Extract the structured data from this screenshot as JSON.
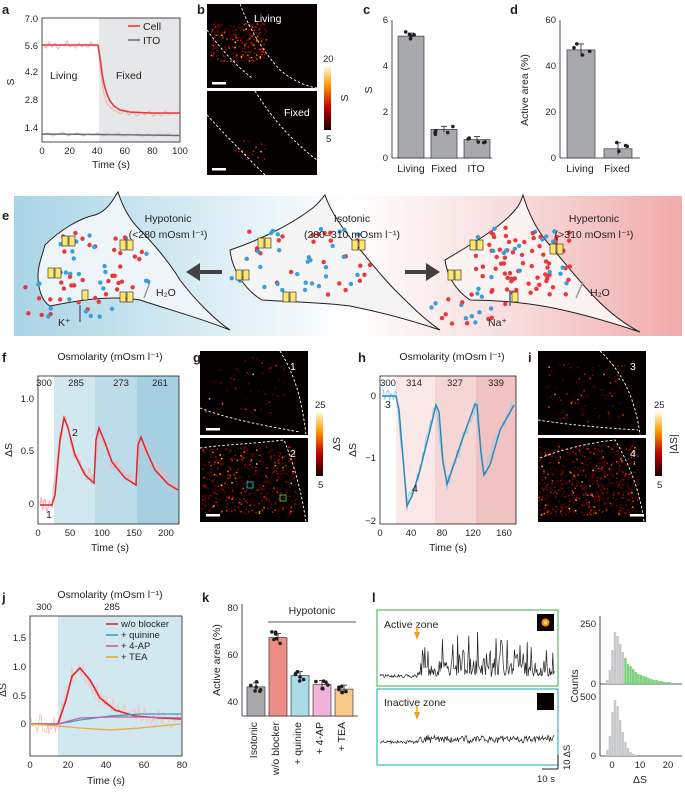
{
  "panel_labels": {
    "a": "a",
    "b": "b",
    "c": "c",
    "d": "d",
    "e": "e",
    "f": "f",
    "g": "g",
    "h": "h",
    "i": "i",
    "j": "j",
    "k": "k",
    "l": "l"
  },
  "colors": {
    "cell_red": "#e8383d",
    "ito_grey": "#6d6e71",
    "bar_grey": "#a7a9ac",
    "salmon": "#ee8c86",
    "light_blue": "#a9dbe9",
    "pink": "#f2b3da",
    "orange": "#f9c987",
    "hypo_blue": "#b9dcea",
    "hyper_pink": "#f2b5b5",
    "trace_blue": "#2a8ab8"
  },
  "panel_a": {
    "ylabel": "S",
    "xlabel": "Time (s)",
    "yticks": [
      "1.4",
      "2.8",
      "4.2",
      "5.6",
      "7.0"
    ],
    "xticks": [
      "0",
      "20",
      "40",
      "60",
      "80",
      "100"
    ],
    "legend": [
      "Cell",
      "ITO"
    ],
    "region_left": "Living",
    "region_right": "Fixed"
  },
  "panel_b": {
    "top_label": "Living",
    "bottom_label": "Fixed",
    "colorbar_max": "20",
    "colorbar_min": "5",
    "colorbar_label": "S"
  },
  "panel_c": {
    "ylabel": "S",
    "yticks": [
      "0",
      "2",
      "4",
      "6"
    ],
    "categories": [
      "Living",
      "Fixed",
      "ITO"
    ]
  },
  "panel_d": {
    "ylabel": "Active area (%)",
    "yticks": [
      "0",
      "20",
      "40",
      "60"
    ],
    "categories": [
      "Living",
      "Fixed"
    ]
  },
  "panel_e": {
    "hypo_title": "Hypotonic",
    "hypo_range": "(<280 mOsm l⁻¹)",
    "iso_title": "Isotonic",
    "iso_range": "(280–310 mOsm l⁻¹)",
    "hyper_title": "Hypertonic",
    "hyper_range": "(>310 mOsm l⁻¹)",
    "water": "H₂O",
    "k_ion": "K⁺",
    "na_ion": "Na⁺"
  },
  "panel_f": {
    "title": "Osmolarity (mOsm l⁻¹)",
    "osm_ticks": [
      "300",
      "285",
      "273",
      "261"
    ],
    "ylabel": "ΔS",
    "xlabel": "Time (s)",
    "yticks": [
      "0",
      "0.5",
      "1.0"
    ],
    "xticks": [
      "0",
      "50",
      "100",
      "150",
      "200"
    ],
    "marker1": "1",
    "marker2": "2"
  },
  "panel_g": {
    "top_label": "1",
    "bottom_label": "2",
    "colorbar_max": "25",
    "colorbar_min": "5",
    "colorbar_label": "ΔS"
  },
  "panel_h": {
    "title": "Osmolarity (mOsm l⁻¹)",
    "osm_ticks": [
      "300",
      "314",
      "327",
      "339"
    ],
    "ylabel": "ΔS",
    "xlabel": "Time (s)",
    "yticks": [
      "0",
      "−1",
      "−2"
    ],
    "xticks": [
      "0",
      "40",
      "80",
      "120",
      "160"
    ],
    "marker3": "3",
    "marker4": "4"
  },
  "panel_i": {
    "top_label": "3",
    "bottom_label": "4",
    "colorbar_max": "25",
    "colorbar_min": "5",
    "colorbar_label": "|ΔS|"
  },
  "panel_j": {
    "title": "Osmolarity (mOsm l⁻¹)",
    "osm_ticks": [
      "300",
      "285"
    ],
    "ylabel": "ΔS",
    "xlabel": "Time (s)",
    "yticks": [
      "0",
      "0.5",
      "1.0",
      "1.5"
    ],
    "xticks": [
      "0",
      "20",
      "40",
      "60",
      "80"
    ],
    "legend": [
      "w/o blocker",
      "+ quinine",
      "+ 4-AP",
      "+ TEA"
    ]
  },
  "panel_k": {
    "ylabel": "Active area (%)",
    "yticks": [
      "40",
      "60",
      "80"
    ],
    "group_label": "Hypotonic",
    "categories": [
      "Isotonic",
      "w/o blocker",
      "+ quinine",
      "+ 4-AP",
      "+ TEA"
    ]
  },
  "panel_l": {
    "active_label": "Active zone",
    "inactive_label": "Inactive zone",
    "scale_x": "10 s",
    "scale_y": "10 ΔS",
    "counts_label": "Counts",
    "hist_xlabel": "ΔS",
    "hist_top_yticks": [
      "0",
      "250"
    ],
    "hist_bottom_yticks": [
      "0",
      "500"
    ],
    "hist_xticks": [
      "0",
      "10",
      "20"
    ]
  },
  "chart_data": [
    {
      "panel": "a",
      "type": "line",
      "title": "",
      "xlabel": "Time (s)",
      "ylabel": "S",
      "xlim": [
        0,
        100
      ],
      "ylim": [
        0.7,
        7.0
      ],
      "series": [
        {
          "name": "Cell",
          "values_description": "plateau 5.6 then exponential decay",
          "x": [
            0,
            10,
            20,
            30,
            38,
            40,
            42,
            45,
            50,
            55,
            60,
            70,
            80,
            90,
            100
          ],
          "values": [
            5.6,
            5.6,
            5.6,
            5.6,
            5.6,
            5.3,
            4.4,
            3.4,
            2.6,
            2.3,
            2.15,
            2.1,
            2.1,
            2.1,
            2.1
          ]
        },
        {
          "name": "ITO",
          "x": [
            0,
            20,
            40,
            60,
            80,
            100
          ],
          "values": [
            0.9,
            0.88,
            0.85,
            0.85,
            0.82,
            0.8
          ]
        }
      ]
    },
    {
      "panel": "c",
      "type": "bar",
      "categories": [
        "Living",
        "Fixed",
        "ITO"
      ],
      "values": [
        5.3,
        1.25,
        0.8
      ],
      "ylabel": "S",
      "ylim": [
        0,
        6
      ]
    },
    {
      "panel": "d",
      "type": "bar",
      "categories": [
        "Living",
        "Fixed"
      ],
      "values": [
        47,
        4
      ],
      "ylabel": "Active area (%)",
      "ylim": [
        0,
        60
      ]
    },
    {
      "panel": "f",
      "type": "line",
      "xlabel": "Time (s)",
      "ylabel": "ΔS",
      "xlim": [
        0,
        220
      ],
      "ylim": [
        -0.15,
        1.1
      ],
      "series": [
        {
          "name": "ΔS fit",
          "x": [
            0,
            28,
            40,
            60,
            90,
            92,
            110,
            140,
            150,
            152,
            170,
            210
          ],
          "values": [
            -0.05,
            -0.05,
            0.82,
            0.3,
            0.1,
            0.75,
            0.3,
            0.1,
            0.05,
            0.66,
            0.25,
            0.02
          ]
        }
      ]
    },
    {
      "panel": "h",
      "type": "line",
      "xlabel": "Time (s)",
      "ylabel": "ΔS",
      "xlim": [
        0,
        175
      ],
      "ylim": [
        -2,
        0.3
      ],
      "series": [
        {
          "name": "ΔS fit",
          "x": [
            0,
            28,
            38,
            50,
            70,
            82,
            92,
            110,
            140,
            148,
            155,
            175
          ],
          "values": [
            0,
            0,
            -1.65,
            -1.1,
            -0.3,
            -0.05,
            -1.25,
            -0.7,
            -0.05,
            -0.05,
            -1.15,
            -0.1
          ]
        }
      ]
    },
    {
      "panel": "j",
      "type": "line",
      "xlabel": "Time (s)",
      "ylabel": "ΔS",
      "xlim": [
        0,
        80
      ],
      "ylim": [
        -0.3,
        1.7
      ],
      "series": [
        {
          "name": "w/o blocker",
          "x": [
            0,
            15,
            22,
            30,
            40,
            50,
            60,
            70,
            80
          ],
          "values": [
            0,
            0,
            0.7,
            1.1,
            0.7,
            0.35,
            0.2,
            0.15,
            0.1
          ]
        },
        {
          "name": "+ quinine",
          "x": [
            0,
            15,
            30,
            50,
            80
          ],
          "values": [
            0,
            0,
            0.1,
            0.15,
            0.15
          ]
        },
        {
          "name": "+ 4-AP",
          "x": [
            0,
            15,
            30,
            50,
            80
          ],
          "values": [
            0,
            0,
            0.12,
            0.12,
            0.1
          ]
        },
        {
          "name": "+ TEA",
          "x": [
            0,
            15,
            30,
            50,
            80
          ],
          "values": [
            0,
            0,
            -0.05,
            -0.08,
            0
          ]
        }
      ]
    },
    {
      "panel": "k",
      "type": "bar",
      "categories": [
        "Isotonic",
        "w/o blocker",
        "+ quinine",
        "+ 4-AP",
        "+ TEA"
      ],
      "values": [
        48,
        70,
        53,
        49,
        47
      ],
      "ylabel": "Active area (%)",
      "ylim": [
        35,
        85
      ]
    }
  ]
}
